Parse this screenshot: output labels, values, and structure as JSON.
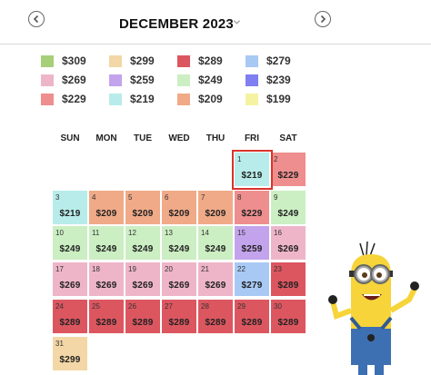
{
  "header": {
    "month": "DECEMBER 2023",
    "prev_icon": "chevron-left-icon",
    "next_icon": "chevron-right-icon",
    "dropdown_icon": "chevron-down-icon"
  },
  "legend": [
    {
      "price": "$309",
      "color": "#a7cf7a"
    },
    {
      "price": "$299",
      "color": "#f3d7a6"
    },
    {
      "price": "$289",
      "color": "#dc5660"
    },
    {
      "price": "$279",
      "color": "#a8c9f4"
    },
    {
      "price": "$269",
      "color": "#eeb5c9"
    },
    {
      "price": "$259",
      "color": "#c3a3ec"
    },
    {
      "price": "$249",
      "color": "#cbeec2"
    },
    {
      "price": "$239",
      "color": "#7f7ff2"
    },
    {
      "price": "$229",
      "color": "#ee8e8e"
    },
    {
      "price": "$219",
      "color": "#b8ecea"
    },
    {
      "price": "$209",
      "color": "#f0aa88"
    },
    {
      "price": "$199",
      "color": "#f5f3a1"
    }
  ],
  "weekdays": [
    "SUN",
    "MON",
    "TUE",
    "WED",
    "THU",
    "FRI",
    "SAT"
  ],
  "days": [
    {
      "day": "1",
      "price": "$219",
      "color": "#b8ecea",
      "selected": true
    },
    {
      "day": "2",
      "price": "$229",
      "color": "#ee8e8e"
    },
    {
      "day": "3",
      "price": "$219",
      "color": "#b8ecea"
    },
    {
      "day": "4",
      "price": "$209",
      "color": "#f0aa88"
    },
    {
      "day": "5",
      "price": "$209",
      "color": "#f0aa88"
    },
    {
      "day": "6",
      "price": "$209",
      "color": "#f0aa88"
    },
    {
      "day": "7",
      "price": "$209",
      "color": "#f0aa88"
    },
    {
      "day": "8",
      "price": "$229",
      "color": "#ee8e8e"
    },
    {
      "day": "9",
      "price": "$249",
      "color": "#cbeec2"
    },
    {
      "day": "10",
      "price": "$249",
      "color": "#cbeec2"
    },
    {
      "day": "11",
      "price": "$249",
      "color": "#cbeec2"
    },
    {
      "day": "12",
      "price": "$249",
      "color": "#cbeec2"
    },
    {
      "day": "13",
      "price": "$249",
      "color": "#cbeec2"
    },
    {
      "day": "14",
      "price": "$249",
      "color": "#cbeec2"
    },
    {
      "day": "15",
      "price": "$259",
      "color": "#c3a3ec"
    },
    {
      "day": "16",
      "price": "$269",
      "color": "#eeb5c9"
    },
    {
      "day": "17",
      "price": "$269",
      "color": "#eeb5c9"
    },
    {
      "day": "18",
      "price": "$269",
      "color": "#eeb5c9"
    },
    {
      "day": "19",
      "price": "$269",
      "color": "#eeb5c9"
    },
    {
      "day": "20",
      "price": "$269",
      "color": "#eeb5c9"
    },
    {
      "day": "21",
      "price": "$269",
      "color": "#eeb5c9"
    },
    {
      "day": "22",
      "price": "$279",
      "color": "#a8c9f4"
    },
    {
      "day": "23",
      "price": "$289",
      "color": "#dc5660"
    },
    {
      "day": "24",
      "price": "$289",
      "color": "#dc5660"
    },
    {
      "day": "25",
      "price": "$289",
      "color": "#dc5660"
    },
    {
      "day": "26",
      "price": "$289",
      "color": "#dc5660"
    },
    {
      "day": "27",
      "price": "$289",
      "color": "#dc5660"
    },
    {
      "day": "28",
      "price": "$289",
      "color": "#dc5660"
    },
    {
      "day": "29",
      "price": "$289",
      "color": "#dc5660"
    },
    {
      "day": "30",
      "price": "$289",
      "color": "#dc5660"
    },
    {
      "day": "31",
      "price": "$299",
      "color": "#f3d7a6"
    }
  ]
}
